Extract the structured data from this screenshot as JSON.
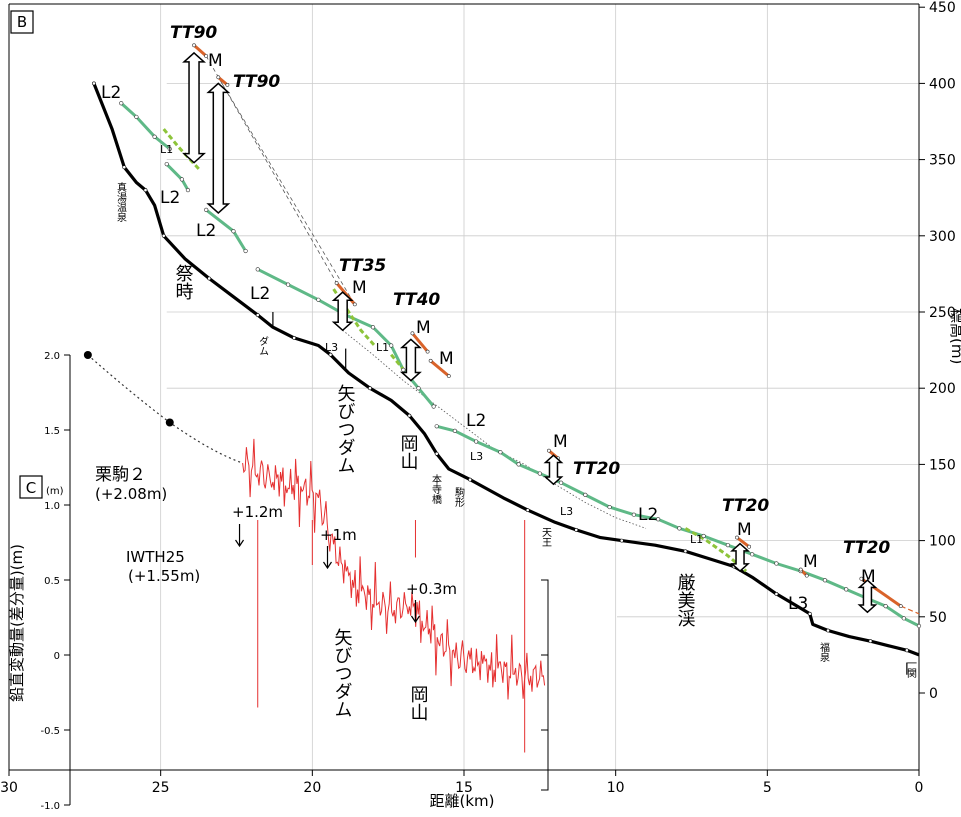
{
  "chart_data": [
    {
      "type": "line",
      "panel": "B",
      "xlabel": "距離(km)",
      "ylabel": "標高(m)",
      "xlim": [
        30,
        0
      ],
      "ylim": [
        -50,
        450
      ],
      "x_ticks": [
        "30",
        "25",
        "20",
        "15",
        "10",
        "5",
        "0"
      ],
      "y_ticks": [
        "0",
        "50",
        "100",
        "150",
        "200",
        "250",
        "300",
        "350",
        "400",
        "450"
      ],
      "series": [
        {
          "role": "river-bed",
          "color": "#000000",
          "points": [
            [
              27.2,
              400
            ],
            [
              26.6,
              370
            ],
            [
              26.2,
              345
            ],
            [
              25.8,
              335
            ],
            [
              25.5,
              330
            ],
            [
              25.2,
              320
            ],
            [
              24.9,
              300
            ],
            [
              24.2,
              285
            ],
            [
              23.4,
              272
            ],
            [
              22.6,
              260
            ],
            [
              21.8,
              248
            ],
            [
              21.3,
              240
            ],
            [
              20.6,
              233
            ],
            [
              19.8,
              228
            ],
            [
              19.4,
              222
            ],
            [
              18.8,
              210
            ],
            [
              18.1,
              200
            ],
            [
              17.4,
              192
            ],
            [
              16.8,
              182
            ],
            [
              16.3,
              170
            ],
            [
              15.9,
              157
            ],
            [
              15.5,
              147
            ],
            [
              14.8,
              140
            ],
            [
              13.7,
              128
            ],
            [
              12.9,
              120
            ],
            [
              12.0,
              112
            ],
            [
              11.3,
              107
            ],
            [
              10.5,
              102
            ],
            [
              9.8,
              100
            ],
            [
              8.7,
              97
            ],
            [
              7.7,
              93
            ],
            [
              6.9,
              88
            ],
            [
              6.1,
              83
            ],
            [
              5.5,
              76
            ],
            [
              4.7,
              65
            ],
            [
              4.1,
              58
            ],
            [
              3.6,
              52
            ],
            [
              3.5,
              45
            ],
            [
              3.0,
              41
            ],
            [
              2.3,
              37
            ],
            [
              1.6,
              34
            ],
            [
              1.0,
              31
            ],
            [
              0.4,
              28
            ],
            [
              0,
              25
            ]
          ]
        },
        {
          "role": "terrace",
          "color": "#5fb987",
          "segments": [
            [
              [
                26.3,
                387
              ],
              [
                25.8,
                378
              ],
              [
                25.2,
                365
              ],
              [
                24.7,
                357
              ]
            ],
            [
              [
                24.8,
                347
              ],
              [
                24.3,
                337
              ],
              [
                24.1,
                330
              ]
            ],
            [
              [
                23.5,
                317
              ],
              [
                22.6,
                303
              ],
              [
                22.2,
                290
              ]
            ],
            [
              [
                21.8,
                278
              ],
              [
                20.8,
                268
              ],
              [
                19.8,
                258
              ],
              [
                18.9,
                248
              ],
              [
                18.0,
                240
              ],
              [
                17.4,
                228
              ],
              [
                17.0,
                212
              ],
              [
                16.5,
                200
              ],
              [
                16.0,
                188
              ]
            ],
            [
              [
                15.9,
                175
              ],
              [
                15.3,
                172
              ],
              [
                14.6,
                165
              ],
              [
                13.8,
                158
              ],
              [
                13.2,
                150
              ],
              [
                12.5,
                144
              ],
              [
                11.8,
                138
              ],
              [
                11.0,
                130
              ],
              [
                10.2,
                122
              ],
              [
                9.4,
                117
              ],
              [
                8.6,
                114
              ],
              [
                7.9,
                108
              ],
              [
                7.1,
                103
              ],
              [
                6.3,
                97
              ],
              [
                5.5,
                91
              ],
              [
                4.7,
                85
              ],
              [
                3.9,
                80
              ],
              [
                3.1,
                74
              ],
              [
                2.4,
                68
              ],
              [
                1.7,
                62
              ],
              [
                1.1,
                57
              ],
              [
                0.5,
                49
              ],
              [
                0,
                44
              ]
            ]
          ]
        },
        {
          "role": "terrace-L1",
          "color": "#8dc43a",
          "segments": [
            [
              [
                24.9,
                370
              ],
              [
                24.4,
                358
              ],
              [
                23.7,
                343
              ]
            ],
            [
              [
                19.3,
                265
              ],
              [
                18.9,
                253
              ],
              [
                18.4,
                238
              ],
              [
                17.9,
                227
              ]
            ],
            [
              [
                17.4,
                222
              ],
              [
                16.9,
                210
              ]
            ],
            [
              [
                7.7,
                108
              ],
              [
                7.0,
                100
              ],
              [
                6.3,
                90
              ],
              [
                5.7,
                80
              ]
            ]
          ]
        },
        {
          "role": "M-surface",
          "color": "#d9632a",
          "segments": [
            [
              [
                23.9,
                425
              ],
              [
                23.5,
                418
              ]
            ],
            [
              [
                23.1,
                404
              ],
              [
                22.8,
                399
              ]
            ],
            [
              [
                19.2,
                269
              ],
              [
                18.6,
                255
              ]
            ],
            [
              [
                16.7,
                236
              ],
              [
                16.2,
                224
              ]
            ],
            [
              [
                16.1,
                218
              ],
              [
                15.5,
                208
              ]
            ],
            [
              [
                12.2,
                159
              ],
              [
                11.9,
                154
              ]
            ],
            [
              [
                6.0,
                102
              ],
              [
                5.6,
                96
              ]
            ],
            [
              [
                3.9,
                81
              ],
              [
                3.7,
                77
              ]
            ],
            [
              [
                1.9,
                75
              ],
              [
                0.6,
                57
              ]
            ]
          ]
        }
      ],
      "annotations": {
        "tt": [
          "TT90",
          "TT90",
          "TT35",
          "TT40",
          "TT20",
          "TT20",
          "TT20"
        ],
        "surfaces": [
          "M",
          "M",
          "M",
          "M",
          "M",
          "M",
          "M",
          "M",
          "L1",
          "L1",
          "L1",
          "L2",
          "L2",
          "L2",
          "L2",
          "L2",
          "L2",
          "L3",
          "L3",
          "L3",
          "L3"
        ],
        "places": [
          "真湯温泉",
          "祭時",
          "ダム",
          "矢びつダム",
          "岡山",
          "本寺橋",
          "駒形",
          "天王",
          "厳美渓",
          "福泉",
          "一関"
        ]
      }
    },
    {
      "type": "line",
      "panel": "C",
      "ylabel": "鉛直変動量(差分量)(m)",
      "yunit": "(m)",
      "ylim": [
        -1.0,
        2.0
      ],
      "y_ticks": [
        "2.0",
        "1.5",
        "1.0",
        "0.5",
        "0",
        "-0.5",
        "-1.0"
      ],
      "stations": [
        {
          "name": "栗駒２",
          "value_label": "(+2.08m)",
          "x": 27.4,
          "y": 2.0
        },
        {
          "name": "IWTH25",
          "value_label": "(+1.55m)",
          "x": 24.7,
          "y": 1.55
        }
      ],
      "profile_color": "#e53030",
      "profile_x_range": [
        22.3,
        12.3
      ],
      "profile_points": [
        [
          22.3,
          1.28
        ],
        [
          21.8,
          1.22
        ],
        [
          21.3,
          1.18
        ],
        [
          20.8,
          1.14
        ],
        [
          20.3,
          1.12
        ],
        [
          19.8,
          1.05
        ],
        [
          19.3,
          0.72
        ],
        [
          18.8,
          0.5
        ],
        [
          18.3,
          0.4
        ],
        [
          17.8,
          0.33
        ],
        [
          17.3,
          0.3
        ],
        [
          16.8,
          0.35
        ],
        [
          16.3,
          0.22
        ],
        [
          15.8,
          0.1
        ],
        [
          15.3,
          0.0
        ],
        [
          14.8,
          -0.04
        ],
        [
          14.3,
          -0.08
        ],
        [
          13.8,
          -0.1
        ],
        [
          13.3,
          -0.13
        ],
        [
          12.8,
          -0.15
        ],
        [
          12.3,
          -0.12
        ]
      ],
      "callouts": [
        "+1.2m",
        "+1m",
        "+0.3m"
      ],
      "places": [
        "矢びつダム",
        "岡山"
      ]
    }
  ],
  "panel_labels": {
    "b": "B",
    "c": "C"
  }
}
